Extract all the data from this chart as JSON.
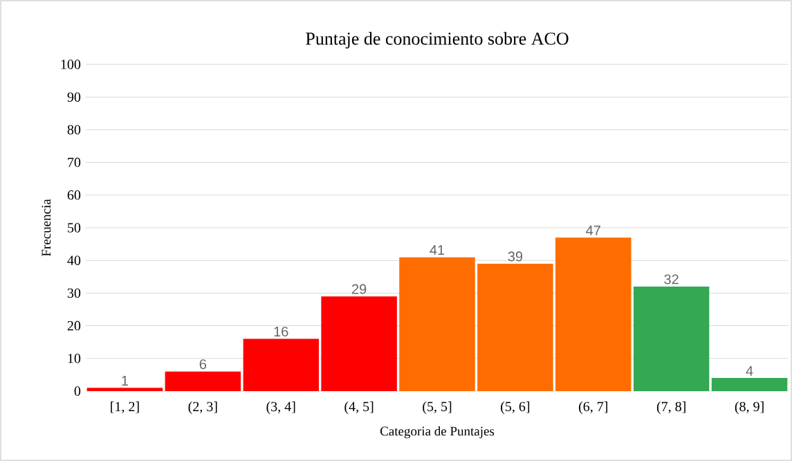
{
  "chart_data": {
    "type": "bar",
    "title": "Puntaje de conocimiento sobre ACO",
    "xlabel": "Categoria de Puntajes",
    "ylabel": "Frecuencia",
    "categories": [
      "[1, 2]",
      "(2, 3]",
      "(3, 4]",
      "(4, 5]",
      "(5, 5]",
      "(5, 6]",
      "(6, 7]",
      "(7, 8]",
      "(8, 9]"
    ],
    "values": [
      1,
      6,
      16,
      29,
      41,
      39,
      47,
      32,
      4
    ],
    "colors": [
      "#ff0000",
      "#ff0000",
      "#ff0000",
      "#ff0000",
      "#ff6d00",
      "#ff6d00",
      "#ff6d00",
      "#34a853",
      "#34a853"
    ],
    "ylim": [
      0,
      100
    ],
    "yticks": [
      0,
      10,
      20,
      30,
      40,
      50,
      60,
      70,
      80,
      90,
      100
    ],
    "grid": "y",
    "data_labels": true
  }
}
